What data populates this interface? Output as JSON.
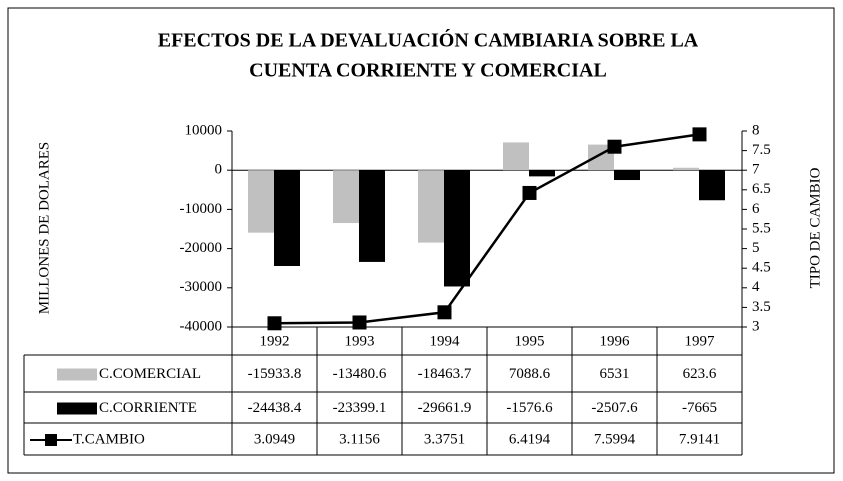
{
  "chart_data": {
    "type": "bar",
    "title_lines": [
      "EFECTOS DE LA DEVALUACIÓN CAMBIARIA SOBRE LA",
      "CUENTA CORRIENTE Y COMERCIAL"
    ],
    "y_label": "MILLONES DE DOLARES",
    "y2_label": "TIPO DE CAMBIO",
    "categories": [
      "1992",
      "1993",
      "1994",
      "1995",
      "1996",
      "1997"
    ],
    "series": [
      {
        "name": "C.COMERCIAL",
        "color": "#c0c0c0",
        "values": [
          -15933.8,
          -13480.6,
          -18463.7,
          7088.6,
          6531,
          623.6
        ]
      },
      {
        "name": "C.CORRIENTE",
        "color": "#000000",
        "values": [
          -24438.4,
          -23399.1,
          -29661.9,
          -1576.6,
          -2507.6,
          -7665
        ]
      },
      {
        "name": "T.CAMBIO",
        "color": "#000000",
        "type": "line",
        "axis": "y2",
        "values": [
          3.0949,
          3.1156,
          3.3751,
          6.4194,
          7.5994,
          7.9141
        ]
      }
    ],
    "ylim": [
      -40000,
      10000
    ],
    "yticks": [
      -40000,
      -30000,
      -20000,
      -10000,
      0,
      10000
    ],
    "y2lim": [
      3,
      8
    ],
    "y2ticks": [
      3,
      3.5,
      4,
      4.5,
      5,
      5.5,
      6,
      6.5,
      7,
      7.5,
      8
    ],
    "grid": false,
    "data_table": true
  }
}
